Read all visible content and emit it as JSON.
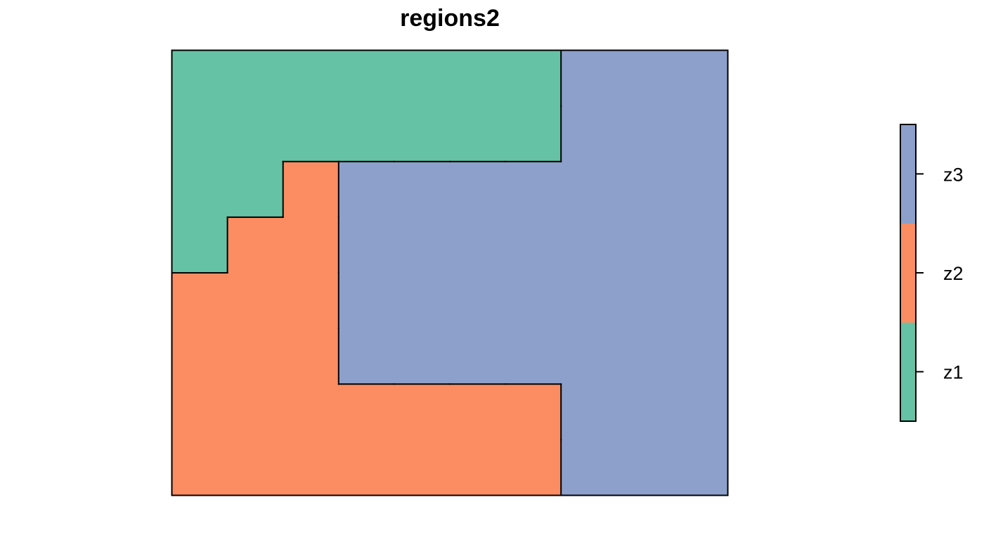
{
  "chart_data": {
    "type": "heatmap",
    "title": "regions2",
    "grid": false,
    "legend_placement": "right",
    "categories": [
      "z1",
      "z2",
      "z3"
    ],
    "colors": {
      "z1": "#66c2a5",
      "z2": "#fc8d62",
      "z3": "#8da0cb"
    },
    "ncols": 10,
    "nrows": 8,
    "cells": [
      [
        1,
        1,
        1,
        1,
        1,
        1,
        1,
        3,
        3,
        3
      ],
      [
        1,
        1,
        1,
        1,
        1,
        1,
        1,
        3,
        3,
        3
      ],
      [
        1,
        1,
        2,
        3,
        3,
        3,
        3,
        3,
        3,
        3
      ],
      [
        1,
        2,
        2,
        3,
        3,
        3,
        3,
        3,
        3,
        3
      ],
      [
        2,
        2,
        2,
        3,
        3,
        3,
        3,
        3,
        3,
        3
      ],
      [
        2,
        2,
        2,
        3,
        3,
        3,
        3,
        3,
        3,
        3
      ],
      [
        2,
        2,
        2,
        2,
        2,
        2,
        2,
        3,
        3,
        3
      ],
      [
        2,
        2,
        2,
        2,
        2,
        2,
        2,
        3,
        3,
        3
      ]
    ],
    "legend": [
      {
        "label": "z1",
        "value": 1
      },
      {
        "label": "z2",
        "value": 2
      },
      {
        "label": "z3",
        "value": 3
      }
    ]
  }
}
